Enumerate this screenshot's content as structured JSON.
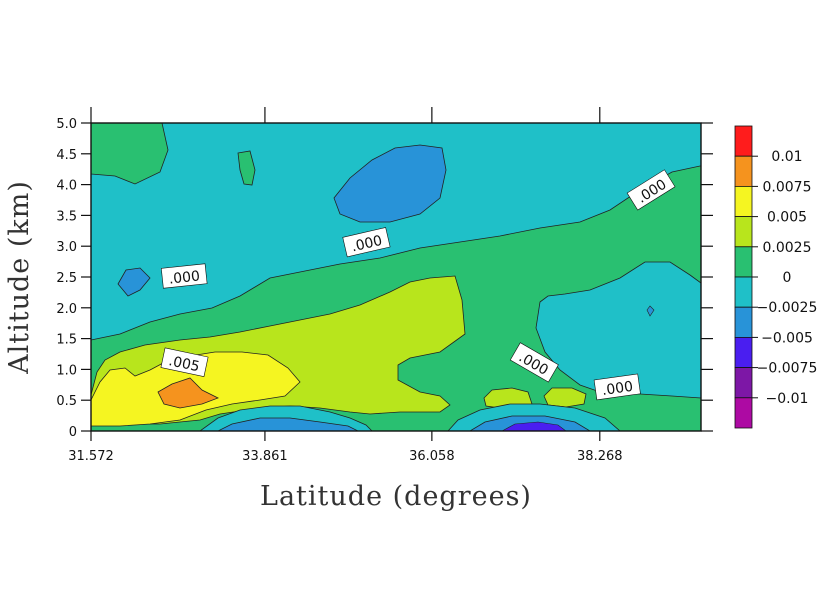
{
  "chart_data": {
    "type": "contour",
    "xlabel": "Latitude (degrees)",
    "ylabel": "Altitude (km)",
    "xlim": [
      31.572,
      39.6
    ],
    "ylim": [
      0,
      5.0
    ],
    "x_ticks": [
      "31.572",
      "33.861",
      "36.058",
      "38.268"
    ],
    "x_tick_values": [
      31.572,
      33.861,
      36.058,
      38.268
    ],
    "y_ticks": [
      "0",
      "0.5",
      "1.0",
      "1.5",
      "2.0",
      "2.5",
      "3.0",
      "3.5",
      "4.0",
      "4.5",
      "5.0"
    ],
    "y_tick_values": [
      0,
      0.5,
      1.0,
      1.5,
      2.0,
      2.5,
      3.0,
      3.5,
      4.0,
      4.5,
      5.0
    ],
    "colorbar": {
      "labels": [
        "0.01",
        "0.0075",
        "0.005",
        "0.0025",
        "0",
        "−0.0025",
        "−0.005",
        "−0.0075",
        "−0.01"
      ],
      "colors": [
        "#ff1c1c",
        "#f5931e",
        "#f5f521",
        "#b8e51c",
        "#29c071",
        "#1fc0c8",
        "#2893d8",
        "#4a1ef0",
        "#7d17a6",
        "#ad0aa3"
      ]
    },
    "contour_labels": [
      {
        "text": ".000",
        "x": 32.8,
        "y": 2.5
      },
      {
        "text": ".000",
        "x": 35.2,
        "y": 3.05
      },
      {
        "text": ".000",
        "x": 38.95,
        "y": 3.9
      },
      {
        "text": ".005",
        "x": 32.8,
        "y": 1.1
      },
      {
        "text": ".000",
        "x": 37.4,
        "y": 1.1
      },
      {
        "text": ".000",
        "x": 38.5,
        "y": 0.7
      }
    ],
    "regions": [
      {
        "name": "background-negative",
        "level": "-0.0025",
        "color": "#1fc0c8"
      },
      {
        "name": "upper-left-zero",
        "level": "0",
        "color": "#29c071"
      },
      {
        "name": "small-zero-patch",
        "level": "0",
        "color": "#29c071"
      },
      {
        "name": "main-zero-band",
        "level": "0",
        "color": "#29c071"
      },
      {
        "name": "upper-blob",
        "level": "-0.005",
        "color": "#2893d8"
      },
      {
        "name": "left-blob",
        "level": "-0.005",
        "color": "#2893d8"
      },
      {
        "name": "right-negative-region",
        "level": "-0.0025",
        "color": "#1fc0c8"
      },
      {
        "name": "tiny-right-blob",
        "level": "-0.005",
        "color": "#2893d8"
      },
      {
        "name": "positive-band",
        "level": "0.0025",
        "color": "#b8e51c"
      },
      {
        "name": "small-positive-1",
        "level": "0.0025",
        "color": "#b8e51c"
      },
      {
        "name": "small-positive-2",
        "level": "0.0025",
        "color": "#b8e51c"
      },
      {
        "name": "yellow-region",
        "level": "0.005",
        "color": "#f5f521"
      },
      {
        "name": "orange-region",
        "level": "0.0075",
        "color": "#f5931e"
      },
      {
        "name": "bottom-negative-1",
        "level": "-0.0025",
        "color": "#1fc0c8"
      },
      {
        "name": "bottom-negative-1-inner",
        "level": "-0.005",
        "color": "#2893d8"
      },
      {
        "name": "bottom-negative-2",
        "level": "-0.0025",
        "color": "#1fc0c8"
      },
      {
        "name": "bottom-negative-2-inner",
        "level": "-0.005",
        "color": "#2893d8"
      },
      {
        "name": "bottom-negative-2-core",
        "level": "-0.0075",
        "color": "#4a1ef0"
      }
    ]
  }
}
